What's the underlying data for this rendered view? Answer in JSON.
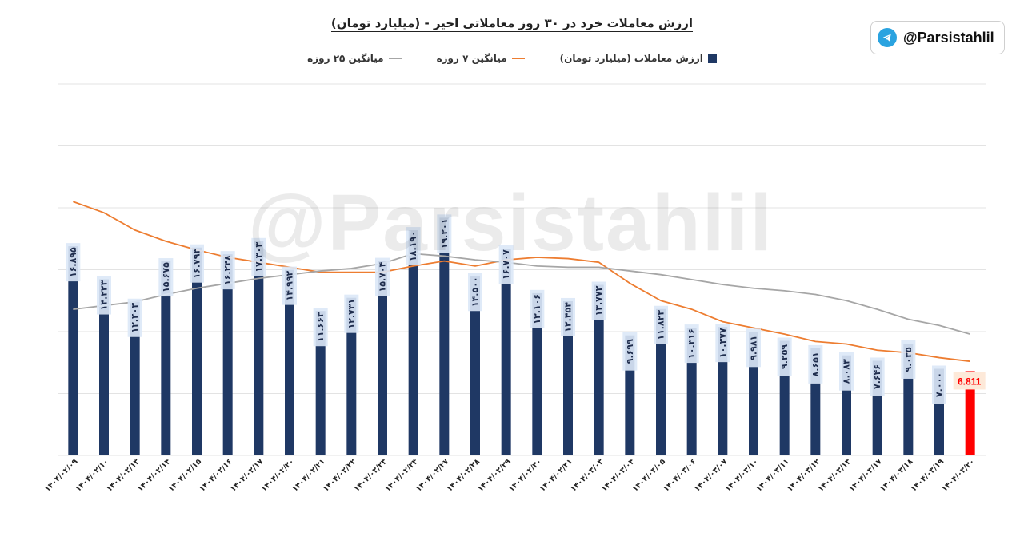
{
  "brand": {
    "handle": "@Parsistahlil",
    "icon": "telegram-icon"
  },
  "watermark": "@Parsistahlil",
  "colors": {
    "bars": "#1f3864",
    "last_bar": "#ff0000",
    "ma7": "#ed7d31",
    "ma25": "#a6a6a6",
    "label_bg": "#dce8f7",
    "last_label_bg": "#fde9d9",
    "grid": "#e3e3e3"
  },
  "chart_data": {
    "type": "bar",
    "title": "ارزش معاملات خرد در ۳۰ روز معاملاتی اخیر - (میلیارد تومان)",
    "xlabel": "",
    "ylabel": "",
    "ylim": [
      0,
      30
    ],
    "grid": true,
    "legend_position": "top",
    "categories": [
      "۱۴۰۴/۰۲/۰۹",
      "۱۴۰۴/۰۲/۱۰",
      "۱۴۰۴/۰۲/۱۳",
      "۱۴۰۴/۰۲/۱۴",
      "۱۴۰۴/۰۲/۱۵",
      "۱۴۰۴/۰۲/۱۶",
      "۱۴۰۴/۰۲/۱۷",
      "۱۴۰۴/۰۲/۲۰",
      "۱۴۰۴/۰۲/۲۱",
      "۱۴۰۴/۰۲/۲۲",
      "۱۴۰۴/۰۲/۲۳",
      "۱۴۰۴/۰۲/۲۴",
      "۱۴۰۴/۰۲/۲۷",
      "۱۴۰۴/۰۲/۲۸",
      "۱۴۰۴/۰۲/۲۹",
      "۱۴۰۴/۰۲/۳۰",
      "۱۴۰۴/۰۲/۳۱",
      "۱۴۰۴/۰۳/۰۳",
      "۱۴۰۴/۰۳/۰۴",
      "۱۴۰۴/۰۳/۰۵",
      "۱۴۰۴/۰۳/۰۶",
      "۱۴۰۴/۰۳/۰۷",
      "۱۴۰۴/۰۳/۱۰",
      "۱۴۰۴/۰۳/۱۱",
      "۱۴۰۴/۰۳/۱۲",
      "۱۴۰۴/۰۳/۱۳",
      "۱۴۰۴/۰۳/۱۷",
      "۱۴۰۴/۰۳/۱۸",
      "۱۴۰۴/۰۳/۱۹",
      "۱۴۰۴/۰۳/۲۰"
    ],
    "series": [
      {
        "name": "ارزش معاملات (میلیارد تومان)",
        "kind": "bar",
        "values": [
          16.895,
          14.223,
          12.403,
          15.675,
          16.793,
          16.248,
          17.303,
          14.992,
          11.663,
          12.731,
          15.704,
          18.19,
          19.201,
          14.5,
          16.707,
          13.106,
          12.454,
          13.772,
          9.699,
          11.823,
          10.316,
          10.377,
          9.981,
          9.259,
          8.651,
          8.083,
          7.646,
          9.035,
          7.0,
          6.811
        ],
        "labels": [
          "۱۶.۸۹۵",
          "۱۴.۲۲۳",
          "۱۲.۴۰۳",
          "۱۵.۶۷۵",
          "۱۶.۷۹۳",
          "۱۶.۲۴۸",
          "۱۷.۳۰۳",
          "۱۴.۹۹۲",
          "۱۱.۶۶۳",
          "۱۲.۷۳۱",
          "۱۵.۷۰۴",
          "۱۸.۱۹۰",
          "۱۹.۲۰۱",
          "۱۴.۵۰۰",
          "۱۶.۷۰۷",
          "۱۳.۱۰۶",
          "۱۲.۴۵۴",
          "۱۳.۷۷۲",
          "۹.۶۹۹",
          "۱۱.۸۲۳",
          "۱۰.۳۱۶",
          "۱۰.۳۷۷",
          "۹.۹۸۱",
          "۹.۲۵۹",
          "۸.۶۵۱",
          "۸.۰۸۳",
          "۷.۶۴۶",
          "۹.۰۳۵",
          "۷.۰۰۰",
          "6.811"
        ]
      },
      {
        "name": "میانگین ۷ روزه",
        "kind": "line",
        "values": [
          20.5,
          19.6,
          18.2,
          17.3,
          16.6,
          16.0,
          15.6,
          15.2,
          14.8,
          14.8,
          14.8,
          15.3,
          15.7,
          15.3,
          15.8,
          16.0,
          15.9,
          15.6,
          13.9,
          12.5,
          11.8,
          10.8,
          10.3,
          9.8,
          9.2,
          9.0,
          8.5,
          8.3,
          7.9,
          7.6
        ]
      },
      {
        "name": "میانگین ۲۵ روزه",
        "kind": "line",
        "values": [
          11.8,
          12.1,
          12.4,
          13.0,
          13.5,
          13.9,
          14.3,
          14.6,
          14.9,
          15.1,
          15.5,
          16.3,
          16.1,
          15.8,
          15.6,
          15.3,
          15.2,
          15.2,
          14.9,
          14.6,
          14.2,
          13.8,
          13.5,
          13.3,
          13.0,
          12.5,
          11.8,
          11.0,
          10.5,
          9.8
        ]
      }
    ]
  }
}
